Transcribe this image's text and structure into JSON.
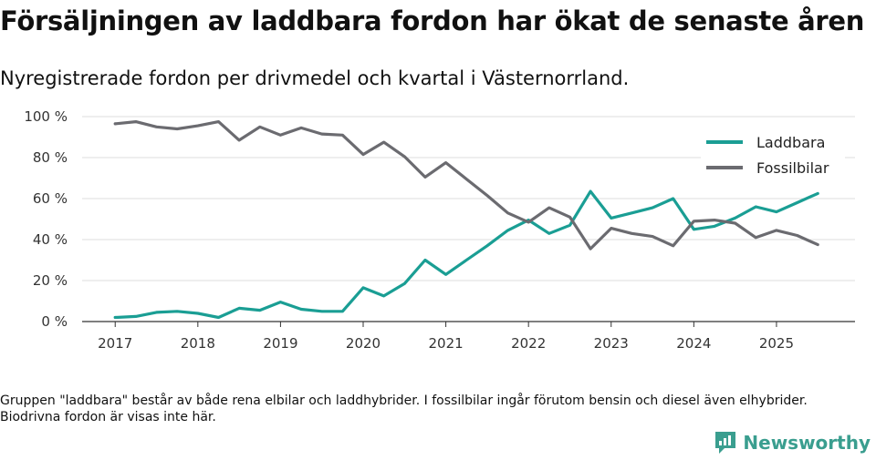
{
  "title": "Försäljningen av laddbara fordon har ökat de senaste åren",
  "subtitle": "Nyregistrerade fordon per drivmedel och kvartal i Västernorrland.",
  "footnote": "Gruppen \"laddbara\" består av både rena elbilar och laddhybrider. I fossilbilar ingår förutom bensin och diesel även elhybrider. Biodrivna fordon är visas inte här.",
  "brand": {
    "name": "Newsworthy",
    "icon": "newsworthy-logo-icon"
  },
  "colors": {
    "laddbara": "#1a9e94",
    "fossil": "#6b6b70",
    "grid": "#dddddd",
    "axis": "#333333"
  },
  "chart_data": {
    "type": "line",
    "title": "Försäljningen av laddbara fordon har ökat de senaste åren",
    "xlabel": "",
    "ylabel": "",
    "x": [
      2017.0,
      2017.25,
      2017.5,
      2017.75,
      2018.0,
      2018.25,
      2018.5,
      2018.75,
      2019.0,
      2019.25,
      2019.5,
      2019.75,
      2020.0,
      2020.25,
      2020.5,
      2020.75,
      2021.0,
      2021.25,
      2021.5,
      2021.75,
      2022.0,
      2022.25,
      2022.5,
      2022.75,
      2023.0,
      2023.25,
      2023.5,
      2023.75,
      2024.0,
      2024.25,
      2024.5,
      2024.75,
      2025.0,
      2025.25,
      2025.5
    ],
    "xlim": [
      2016.6,
      2025.95
    ],
    "ylim": [
      0,
      100
    ],
    "x_ticks": [
      2017,
      2018,
      2019,
      2020,
      2021,
      2022,
      2023,
      2024,
      2025
    ],
    "y_ticks": [
      0,
      20,
      40,
      60,
      80,
      100
    ],
    "y_tick_labels": [
      "0 %",
      "20 %",
      "40 %",
      "60 %",
      "80 %",
      "100 %"
    ],
    "legend_position": "top-right",
    "series": [
      {
        "name": "Laddbara",
        "color": "#1a9e94",
        "values": [
          2,
          2.5,
          4.5,
          5,
          4,
          2,
          6.5,
          5.5,
          9.5,
          6,
          5,
          5,
          16.5,
          12.5,
          18.5,
          30,
          23,
          30,
          37,
          44.5,
          49.5,
          43,
          47,
          63.5,
          50.5,
          53,
          55.5,
          60,
          45,
          46.5,
          50.5,
          56,
          53.5,
          58,
          62.5
        ]
      },
      {
        "name": "Fossilbilar",
        "color": "#6b6b70",
        "values": [
          96.5,
          97.5,
          95,
          94,
          95.5,
          97.5,
          88.5,
          95,
          91,
          94.5,
          91.5,
          91,
          81.5,
          87.5,
          80.5,
          70.5,
          77.5,
          69.5,
          61.5,
          53,
          48.5,
          55.5,
          51,
          35.5,
          45.5,
          43,
          41.5,
          37,
          49,
          49.5,
          48,
          41,
          44.5,
          42,
          37.5
        ]
      }
    ]
  }
}
